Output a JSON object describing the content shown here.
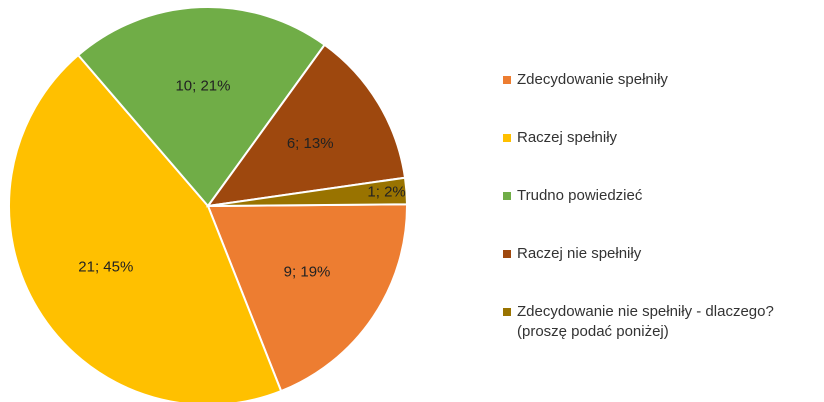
{
  "chart_data": {
    "type": "pie",
    "categories": [
      "Zdecydowanie spełniły",
      "Raczej spełniły",
      "Trudno powiedzieć",
      "Raczej nie spełniły",
      "Zdecydowanie nie spełniły - dlaczego? (proszę podać poniżej)"
    ],
    "values": [
      9,
      21,
      10,
      6,
      1
    ],
    "value_labels": [
      "9; 19%",
      "21; 45%",
      "10; 21%",
      "6; 13%",
      "1; 2%"
    ],
    "colors": [
      "#ed7d31",
      "#ffc000",
      "#70ad47",
      "#9e480e",
      "#997300"
    ],
    "legend": "right"
  }
}
